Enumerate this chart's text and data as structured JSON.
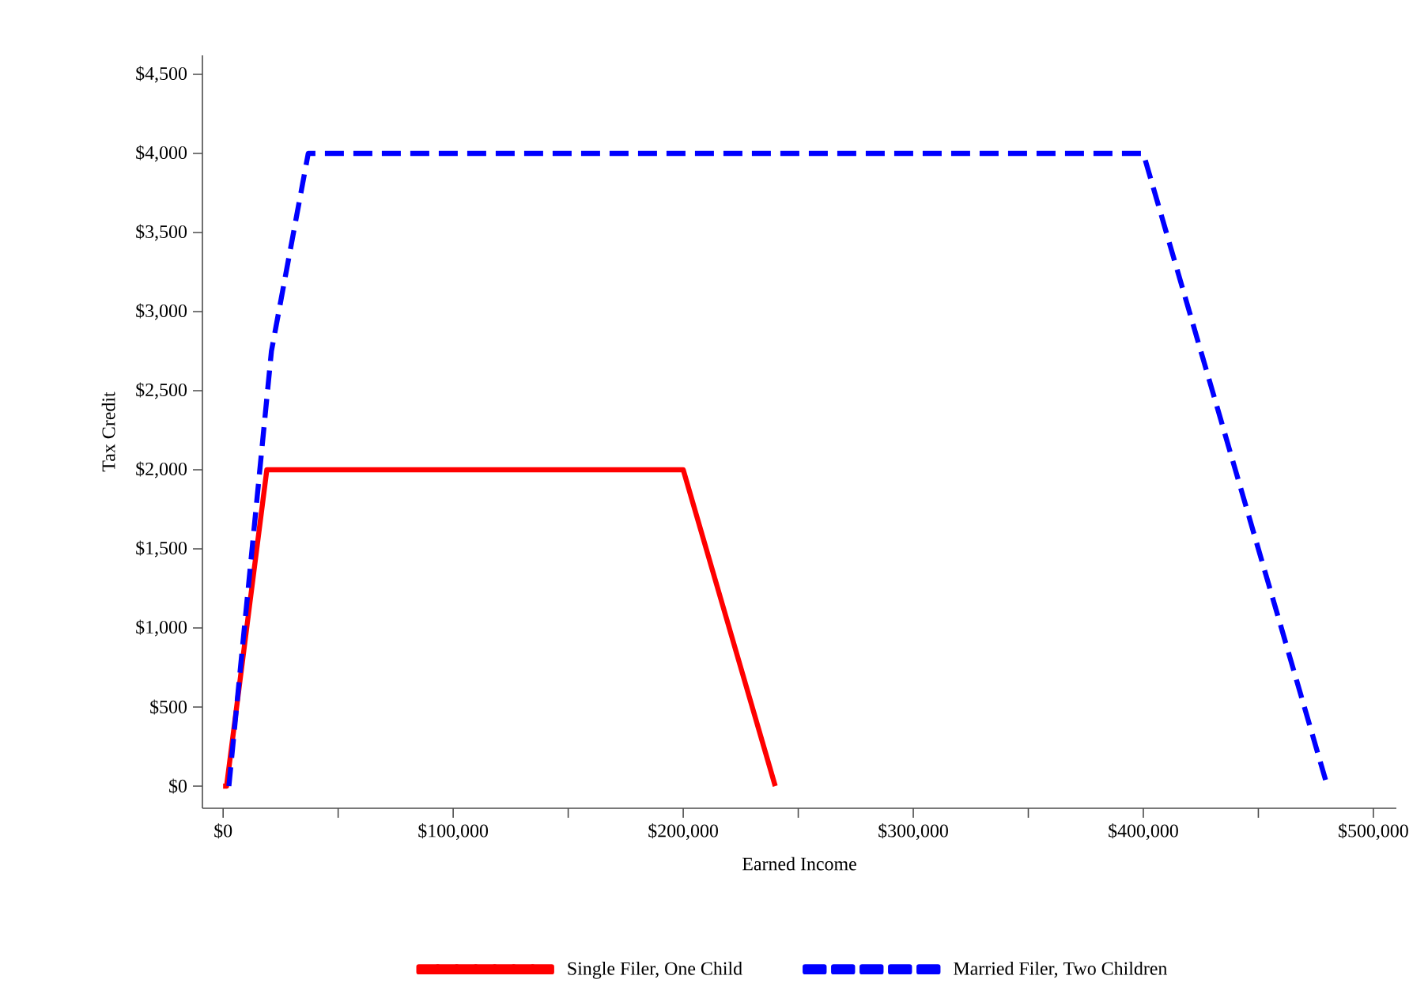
{
  "chart_data": {
    "type": "line",
    "xlabel": "Earned Income",
    "ylabel": "Tax Credit",
    "xlim": [
      -9000,
      510000
    ],
    "ylim": [
      -140,
      4620
    ],
    "xticks": [
      {
        "value": 0,
        "label": "$0"
      },
      {
        "value": 50000,
        "label": null
      },
      {
        "value": 100000,
        "label": "$100,000"
      },
      {
        "value": 150000,
        "label": null
      },
      {
        "value": 200000,
        "label": "$200,000"
      },
      {
        "value": 250000,
        "label": null
      },
      {
        "value": 300000,
        "label": "$300,000"
      },
      {
        "value": 350000,
        "label": null
      },
      {
        "value": 400000,
        "label": "$400,000"
      },
      {
        "value": 450000,
        "label": null
      },
      {
        "value": 500000,
        "label": "$500,000"
      }
    ],
    "yticks": [
      {
        "value": 0,
        "label": "$0"
      },
      {
        "value": 500,
        "label": "$500"
      },
      {
        "value": 1000,
        "label": "$1,000"
      },
      {
        "value": 1500,
        "label": "$1,500"
      },
      {
        "value": 2000,
        "label": "$2,000"
      },
      {
        "value": 2500,
        "label": "$2,500"
      },
      {
        "value": 3000,
        "label": "$3,000"
      },
      {
        "value": 3500,
        "label": "$3,500"
      },
      {
        "value": 4000,
        "label": "$4,000"
      },
      {
        "value": 4500,
        "label": "$4,500"
      }
    ],
    "grid": false,
    "legend": "bottom",
    "marker": "none",
    "series": [
      {
        "name": "Single Filer, One Child",
        "color": "#ff0000",
        "line_style": "solid",
        "x": [
          0,
          1500,
          19000,
          200000,
          240000
        ],
        "values": [
          0,
          0,
          2000,
          2000,
          0
        ]
      },
      {
        "name": "Married Filer, Two Children",
        "color": "#0000ff",
        "line_style": "dashed",
        "x": [
          2500,
          21000,
          37000,
          400000,
          480000
        ],
        "values": [
          0,
          2750,
          4000,
          4000,
          0
        ]
      }
    ]
  }
}
